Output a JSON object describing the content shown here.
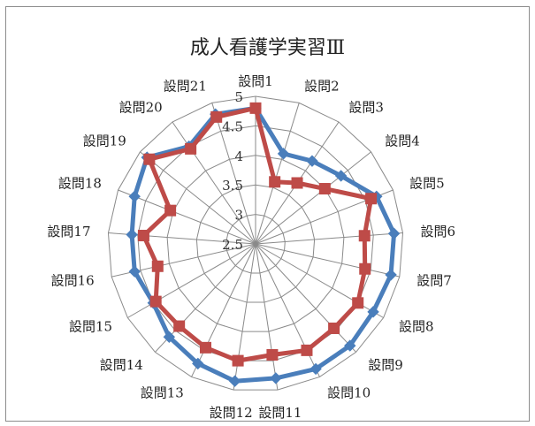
{
  "chart_data": {
    "type": "radar",
    "title": "成人看護学実習Ⅲ",
    "categories": [
      "設問1",
      "設問2",
      "設問3",
      "設問4",
      "設問5",
      "設問6",
      "設問7",
      "設問8",
      "設問9",
      "設問10",
      "設問11",
      "設問12",
      "設問13",
      "設問14",
      "設問15",
      "設問16",
      "設問17",
      "設問18",
      "設問19",
      "設問20",
      "設問21"
    ],
    "ticks": [
      "2.5",
      "3",
      "3.5",
      "4",
      "4.5",
      "5"
    ],
    "rlim": [
      2.5,
      5
    ],
    "grid": true,
    "legend": "none",
    "series": [
      {
        "color": "#4a7ebb",
        "marker": "diamond",
        "values": [
          4.8,
          4.1,
          4.2,
          4.35,
          4.7,
          4.85,
          4.85,
          4.8,
          4.85,
          4.85,
          4.8,
          4.85,
          4.75,
          4.65,
          4.5,
          4.6,
          4.6,
          4.7,
          4.85,
          4.5,
          4.8
        ]
      },
      {
        "color": "#be4b48",
        "marker": "square",
        "values": [
          4.8,
          3.6,
          3.75,
          4.0,
          4.6,
          4.35,
          4.4,
          4.5,
          4.45,
          4.5,
          4.4,
          4.5,
          4.45,
          4.4,
          4.45,
          4.2,
          4.4,
          4.05,
          4.8,
          4.45,
          4.75
        ]
      }
    ]
  }
}
